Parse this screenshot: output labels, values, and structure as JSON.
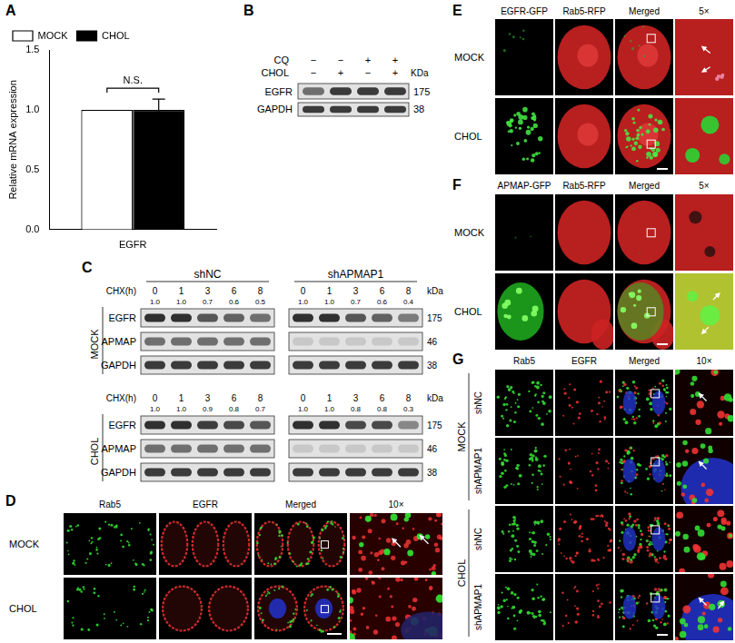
{
  "chart_data": {
    "type": "bar",
    "panel_label": "A",
    "categories": [
      "EGFR"
    ],
    "series": [
      {
        "name": "MOCK",
        "color": "#ffffff",
        "values": [
          1.0
        ]
      },
      {
        "name": "CHOL",
        "color": "#000000",
        "values": [
          1.0
        ],
        "errors": [
          0.09
        ]
      }
    ],
    "y_label": "Relative mRNA expression",
    "annotation": "N.S.",
    "ylim": [
      0,
      1.5
    ],
    "yticks": [
      {
        "value": 0,
        "label": "0.0"
      },
      {
        "value": 0.5,
        "label": "0.5"
      },
      {
        "value": 1,
        "label": "1.0"
      },
      {
        "value": 1.5,
        "label": "1.5"
      }
    ],
    "legend": "top",
    "grid": false
  },
  "blot_B": {
    "label": "B",
    "conditions": [
      {
        "name": "CQ",
        "marks": [
          "−",
          "−",
          "+",
          "+"
        ]
      },
      {
        "name": "CHOL",
        "marks": [
          "−",
          "+",
          "−",
          "+"
        ]
      }
    ],
    "unit": "KDa",
    "rows": [
      {
        "name": "EGFR",
        "mw": "175"
      },
      {
        "name": "GAPDH",
        "mw": "38"
      }
    ]
  },
  "blot_C": {
    "label": "C",
    "groups": [
      "shNC",
      "shAPMAP1"
    ],
    "time_label": "CHX(h)",
    "times": [
      0,
      1,
      3,
      6,
      8
    ],
    "unit": "kDa",
    "rows": [
      {
        "name": "EGFR",
        "mw": "175"
      },
      {
        "name": "APMAP",
        "mw": "46"
      },
      {
        "name": "GAPDH",
        "mw": "38"
      }
    ],
    "blocks": [
      {
        "condition": "MOCK",
        "quant": [
          [
            "1.0",
            "1.0",
            "0.7",
            "0.6",
            "0.5"
          ],
          [
            "1.0",
            "1.0",
            "0.7",
            "0.6",
            "0.4"
          ]
        ]
      },
      {
        "condition": "CHOL",
        "quant": [
          [
            "1.0",
            "1.0",
            "0.9",
            "0.8",
            "0.7"
          ],
          [
            "1.0",
            "1.0",
            "0.8",
            "0.8",
            "0.3"
          ]
        ]
      }
    ]
  },
  "images": [
    {
      "label": "D",
      "columns": [
        "Rab5",
        "EGFR",
        "Merged",
        "10×"
      ],
      "rows": [
        "MOCK",
        "CHOL"
      ]
    },
    {
      "label": "E",
      "columns": [
        "EGFR-GFP",
        "Rab5-RFP",
        "Merged",
        "5×"
      ],
      "rows": [
        "MOCK",
        "CHOL"
      ]
    },
    {
      "label": "F",
      "columns": [
        "APMAP-GFP",
        "Rab5-RFP",
        "Merged",
        "5×"
      ],
      "rows": [
        "MOCK",
        "CHOL"
      ]
    },
    {
      "label": "G",
      "columns": [
        "Rab5",
        "EGFR",
        "Merged",
        "10×"
      ],
      "row_groups": [
        {
          "name": "MOCK",
          "rows": [
            "shNC",
            "shAPMAP1"
          ]
        },
        {
          "name": "CHOL",
          "rows": [
            "shNC",
            "shAPMAP1"
          ]
        }
      ]
    }
  ]
}
